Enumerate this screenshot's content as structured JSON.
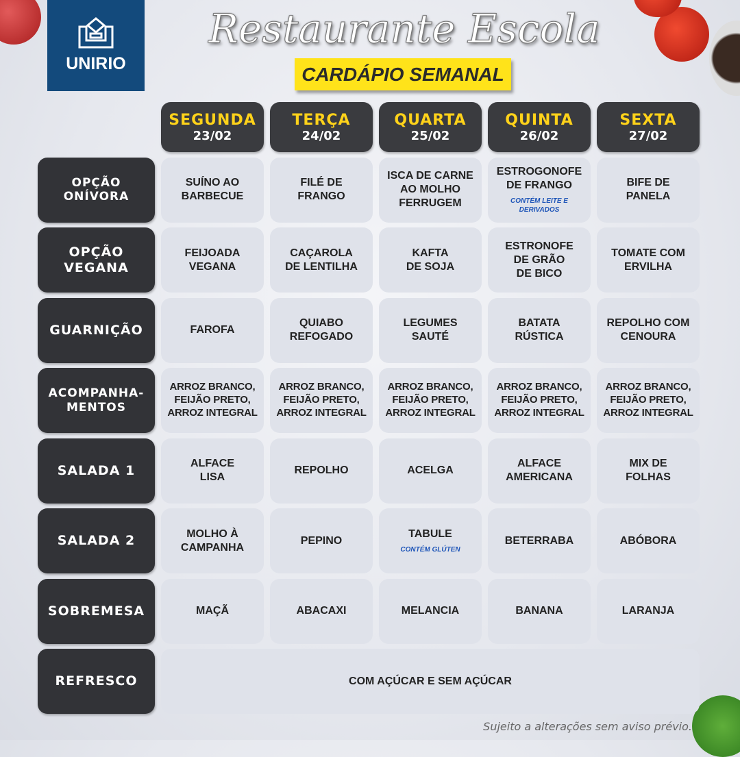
{
  "logo": {
    "text": "UNIRIO"
  },
  "title": "Restaurante Escola",
  "subtitle": "CARDÁPIO SEMANAL",
  "days": [
    {
      "name": "SEGUNDA",
      "date": "23/02"
    },
    {
      "name": "TERÇA",
      "date": "24/02"
    },
    {
      "name": "QUARTA",
      "date": "25/02"
    },
    {
      "name": "QUINTA",
      "date": "26/02"
    },
    {
      "name": "SEXTA",
      "date": "27/02"
    }
  ],
  "rows": [
    {
      "label": "OPÇÃO\nONÍVORA",
      "cells": [
        {
          "text": "SUÍNO AO\nBARBECUE"
        },
        {
          "text": "FILÉ DE\nFRANGO"
        },
        {
          "text": "ISCA DE CARNE\nAO MOLHO\nFERRUGEM"
        },
        {
          "text": "ESTROGONOFE\nDE FRANGO",
          "note": "CONTÉM LEITE E\nDERIVADOS"
        },
        {
          "text": "BIFE DE\nPANELA"
        }
      ]
    },
    {
      "label": "OPÇÃO\nVEGANA",
      "cells": [
        {
          "text": "FEIJOADA\nVEGANA"
        },
        {
          "text": "CAÇAROLA\nDE LENTILHA"
        },
        {
          "text": "KAFTA\nDE SOJA"
        },
        {
          "text": "ESTRONOFE\nDE GRÃO\nDE BICO"
        },
        {
          "text": "TOMATE COM\nERVILHA"
        }
      ]
    },
    {
      "label": "GUARNIÇÃO",
      "cells": [
        {
          "text": "FAROFA"
        },
        {
          "text": "QUIABO\nREFOGADO"
        },
        {
          "text": "LEGUMES\nSAUTÉ"
        },
        {
          "text": "BATATA\nRÚSTICA"
        },
        {
          "text": "REPOLHO COM\nCENOURA"
        }
      ]
    },
    {
      "label": "ACOMPANHA-\nMENTOS",
      "cells": [
        {
          "text": "ARROZ BRANCO,\nFEIJÃO PRETO,\nARROZ INTEGRAL"
        },
        {
          "text": "ARROZ BRANCO,\nFEIJÃO PRETO,\nARROZ INTEGRAL"
        },
        {
          "text": "ARROZ BRANCO,\nFEIJÃO PRETO,\nARROZ INTEGRAL"
        },
        {
          "text": "ARROZ BRANCO,\nFEIJÃO PRETO,\nARROZ INTEGRAL"
        },
        {
          "text": "ARROZ BRANCO,\nFEIJÃO PRETO,\nARROZ INTEGRAL"
        }
      ]
    },
    {
      "label": "SALADA 1",
      "cells": [
        {
          "text": "ALFACE\nLISA"
        },
        {
          "text": "REPOLHO"
        },
        {
          "text": "ACELGA"
        },
        {
          "text": "ALFACE\nAMERICANA"
        },
        {
          "text": "MIX DE\nFOLHAS"
        }
      ]
    },
    {
      "label": "SALADA 2",
      "cells": [
        {
          "text": "MOLHO À\nCAMPANHA"
        },
        {
          "text": "PEPINO"
        },
        {
          "text": "TABULE",
          "note": "CONTÉM GLÚTEN"
        },
        {
          "text": "BETERRABA"
        },
        {
          "text": "ABÓBORA"
        }
      ]
    },
    {
      "label": "SOBREMESA",
      "cells": [
        {
          "text": "MAÇÃ"
        },
        {
          "text": "ABACAXI"
        },
        {
          "text": "MELANCIA"
        },
        {
          "text": "BANANA"
        },
        {
          "text": "LARANJA"
        }
      ]
    }
  ],
  "refresco": {
    "label": "REFRESCO",
    "text": "COM AÇÚCAR E SEM AÇÚCAR"
  },
  "footer": "Sujeito a alterações sem aviso prévio."
}
